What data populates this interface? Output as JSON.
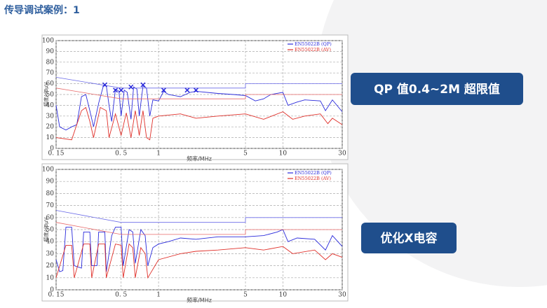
{
  "header": {
    "title": "传导调试案例：1"
  },
  "callouts": [
    "QP 值0.4~2M 超限值",
    "优化X电容"
  ],
  "chart_data": [
    {
      "type": "line",
      "xscale": "log",
      "grid": true,
      "legend": "top-right",
      "ylabel": "幅度/dBμV",
      "xlabel": "频率/MHz",
      "xlim": [
        0.15,
        30
      ],
      "xticks": [
        {
          "value": 0.15,
          "label": "0. 15"
        },
        {
          "value": 0.5,
          "label": "0. 5"
        },
        1,
        5,
        10,
        30
      ],
      "ylim": [
        0,
        100
      ],
      "yticks": [
        0,
        10,
        20,
        30,
        40,
        50,
        60,
        70,
        80,
        90,
        100
      ],
      "series": [
        {
          "name": "EN55022B (QP)",
          "color": "#2a2adb",
          "x": [
            0.15,
            0.16,
            0.18,
            0.2,
            0.22,
            0.24,
            0.26,
            0.28,
            0.3,
            0.33,
            0.36,
            0.38,
            0.4,
            0.42,
            0.45,
            0.48,
            0.5,
            0.53,
            0.56,
            0.6,
            0.63,
            0.67,
            0.7,
            0.75,
            0.8,
            0.85,
            0.9,
            1,
            1.1,
            1.2,
            1.5,
            1.8,
            2,
            3,
            4,
            5,
            6,
            7,
            8,
            10,
            11,
            13,
            15,
            20,
            22,
            25,
            30
          ],
          "values": [
            40,
            20,
            17,
            20,
            22,
            48,
            50,
            35,
            20,
            42,
            58,
            58,
            40,
            25,
            55,
            53,
            30,
            54,
            52,
            27,
            57,
            55,
            30,
            58,
            56,
            30,
            45,
            44,
            53,
            50,
            48,
            52,
            53,
            51,
            50,
            49,
            44,
            46,
            50,
            52,
            40,
            43,
            45,
            44,
            35,
            45,
            34
          ]
        },
        {
          "name": "EN55022B (AV)",
          "color": "#e0302a",
          "x": [
            0.15,
            0.2,
            0.24,
            0.26,
            0.28,
            0.3,
            0.34,
            0.38,
            0.4,
            0.45,
            0.5,
            0.55,
            0.6,
            0.65,
            0.7,
            0.75,
            0.8,
            0.85,
            0.9,
            1,
            1.5,
            2,
            3,
            5,
            7,
            10,
            12,
            15,
            20,
            23,
            25,
            30
          ],
          "values": [
            10,
            8,
            35,
            38,
            25,
            10,
            38,
            35,
            10,
            32,
            12,
            33,
            10,
            35,
            12,
            35,
            10,
            8,
            28,
            30,
            32,
            28,
            30,
            32,
            27,
            34,
            27,
            30,
            32,
            23,
            28,
            22
          ]
        },
        {
          "color": "#6a6ae8",
          "x": [
            0.15,
            0.5,
            0.5,
            5,
            5,
            30
          ],
          "values": [
            66,
            56,
            56,
            56,
            60,
            60
          ]
        },
        {
          "color": "#e86a6a",
          "x": [
            0.15,
            0.5,
            0.5,
            5,
            5,
            30
          ],
          "values": [
            56,
            46,
            46,
            46,
            50,
            50
          ]
        }
      ],
      "peak_markers": {
        "color": "#2a2adb",
        "x": [
          0.37,
          0.45,
          0.5,
          0.6,
          0.75,
          1.1,
          1.7,
          2.0
        ],
        "values": [
          59,
          54,
          54,
          57,
          59,
          54,
          54,
          54
        ]
      }
    },
    {
      "type": "line",
      "xscale": "log",
      "grid": true,
      "legend": "top-right",
      "ylabel": "幅度/dBμV",
      "xlabel": "频率/MHz",
      "xlim": [
        0.15,
        30
      ],
      "xticks": [
        {
          "value": 0.15,
          "label": "0. 15"
        },
        {
          "value": 0.5,
          "label": "0. 5"
        },
        1,
        5,
        10,
        30
      ],
      "ylim": [
        0,
        100
      ],
      "yticks": [
        0,
        10,
        20,
        30,
        40,
        50,
        60,
        70,
        80,
        90,
        100
      ],
      "series": [
        {
          "name": "EN55022B (QP)",
          "color": "#2a2adb",
          "x": [
            0.15,
            0.16,
            0.17,
            0.18,
            0.2,
            0.21,
            0.24,
            0.25,
            0.28,
            0.29,
            0.32,
            0.33,
            0.37,
            0.38,
            0.42,
            0.45,
            0.5,
            0.52,
            0.58,
            0.62,
            0.65,
            0.72,
            0.78,
            0.82,
            0.9,
            1,
            1.2,
            1.5,
            2,
            3,
            5,
            7,
            9,
            10,
            11,
            13,
            18,
            22,
            25,
            30
          ],
          "values": [
            25,
            15,
            16,
            52,
            52,
            20,
            18,
            48,
            48,
            20,
            20,
            48,
            48,
            15,
            45,
            52,
            52,
            20,
            50,
            48,
            22,
            50,
            45,
            20,
            35,
            38,
            40,
            43,
            42,
            44,
            44,
            45,
            48,
            50,
            40,
            43,
            42,
            33,
            45,
            36
          ]
        },
        {
          "name": "EN55022B (AV)",
          "color": "#e0302a",
          "x": [
            0.15,
            0.18,
            0.2,
            0.21,
            0.25,
            0.28,
            0.29,
            0.33,
            0.37,
            0.38,
            0.45,
            0.5,
            0.52,
            0.58,
            0.62,
            0.65,
            0.72,
            0.78,
            0.82,
            1,
            1.5,
            2,
            3,
            5,
            7,
            10,
            12,
            18,
            22,
            25,
            30
          ],
          "values": [
            10,
            37,
            37,
            10,
            38,
            38,
            10,
            38,
            38,
            10,
            38,
            37,
            10,
            38,
            35,
            10,
            35,
            30,
            10,
            25,
            30,
            32,
            33,
            35,
            33,
            36,
            30,
            33,
            25,
            30,
            27
          ]
        },
        {
          "color": "#6a6ae8",
          "x": [
            0.15,
            0.5,
            0.5,
            5,
            5,
            30
          ],
          "values": [
            66,
            56,
            56,
            56,
            60,
            60
          ]
        },
        {
          "color": "#e86a6a",
          "x": [
            0.15,
            0.5,
            0.5,
            5,
            5,
            30
          ],
          "values": [
            56,
            46,
            46,
            46,
            50,
            50
          ]
        }
      ]
    }
  ]
}
